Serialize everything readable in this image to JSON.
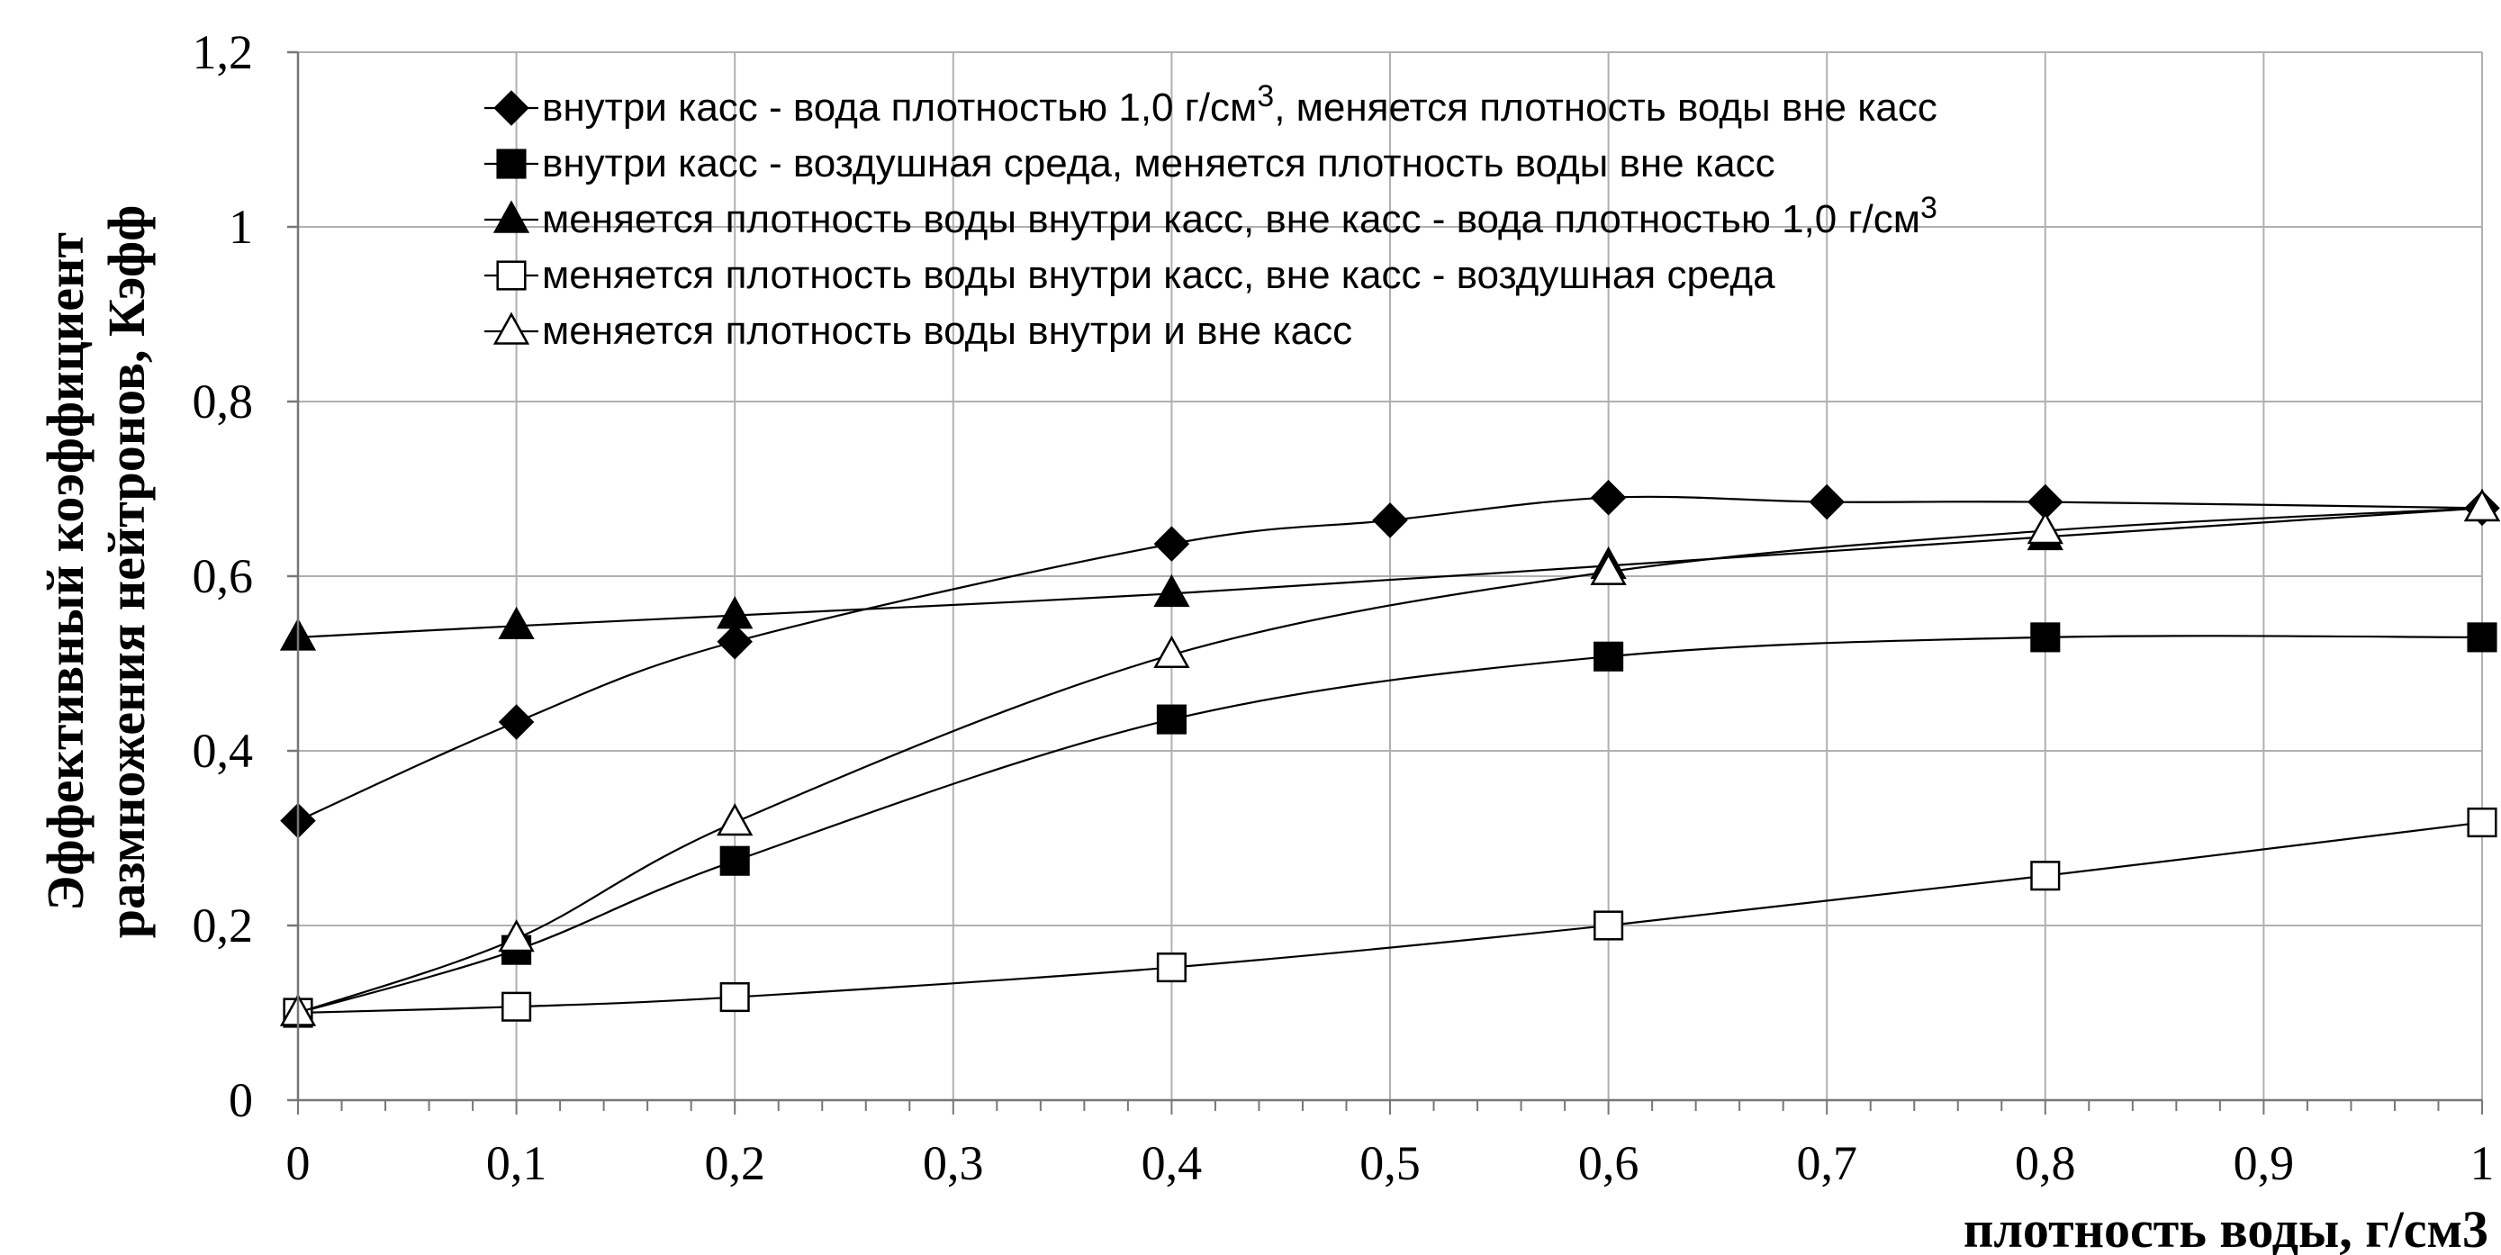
{
  "chart_data": {
    "type": "line",
    "title": "",
    "xlabel": "плотность воды, г/см3",
    "ylabel_line1": "Эффективный коэффициент",
    "ylabel_line2": "размножения нейтронов, Кэфф",
    "xlim": [
      0,
      1
    ],
    "ylim": [
      0,
      1.2
    ],
    "x_ticks": [
      0,
      0.1,
      0.2,
      0.3,
      0.4,
      0.5,
      0.6,
      0.7,
      0.8,
      0.9,
      1
    ],
    "x_tick_labels": [
      "0",
      "0,1",
      "0,2",
      "0,3",
      "0,4",
      "0,5",
      "0,6",
      "0,7",
      "0,8",
      "0,9",
      "1"
    ],
    "y_ticks": [
      0,
      0.2,
      0.4,
      0.6,
      0.8,
      1,
      1.2
    ],
    "y_tick_labels": [
      "0",
      "0,2",
      "0,4",
      "0,6",
      "0,8",
      "1",
      "1,2"
    ],
    "grid": true,
    "legend_position": "top-center",
    "series": [
      {
        "name": "внутри касс - вода плотностью 1,0 г/см",
        "name_sup": "3",
        "name_after": ", меняется плотность воды вне касс",
        "marker": "diamond",
        "filled": true,
        "x": [
          0,
          0.1,
          0.2,
          0.4,
          0.5,
          0.6,
          0.7,
          0.8,
          1
        ],
        "y": [
          0.32,
          0.433,
          0.525,
          0.637,
          0.664,
          0.69,
          0.685,
          0.685,
          0.678
        ]
      },
      {
        "name": "внутри касс - воздушная среда, меняется плотность воды вне касс",
        "marker": "square",
        "filled": true,
        "x": [
          0,
          0.1,
          0.2,
          0.4,
          0.6,
          0.8,
          1
        ],
        "y": [
          0.1,
          0.172,
          0.274,
          0.436,
          0.508,
          0.53,
          0.53
        ]
      },
      {
        "name": "меняется плотность воды внутри касс, вне касс - вода плотностью 1,0 г/см",
        "name_sup": "3",
        "name_after": "",
        "marker": "triangle",
        "filled": true,
        "x": [
          0,
          0.1,
          0.2,
          0.4,
          0.6,
          0.8,
          1
        ],
        "y": [
          0.53,
          0.543,
          0.555,
          0.58,
          0.612,
          0.645,
          0.678
        ]
      },
      {
        "name": "меняется плотность воды внутри касс, вне касс - воздушная среда",
        "marker": "square",
        "filled": false,
        "x": [
          0,
          0.1,
          0.2,
          0.4,
          0.6,
          0.8,
          1
        ],
        "y": [
          0.1,
          0.107,
          0.118,
          0.152,
          0.2,
          0.257,
          0.318
        ]
      },
      {
        "name": "меняется плотность воды внутри и вне касс",
        "marker": "triangle",
        "filled": false,
        "x": [
          0,
          0.1,
          0.2,
          0.4,
          0.6,
          0.8,
          1
        ],
        "y": [
          0.1,
          0.185,
          0.318,
          0.51,
          0.605,
          0.652,
          0.678
        ]
      }
    ]
  }
}
